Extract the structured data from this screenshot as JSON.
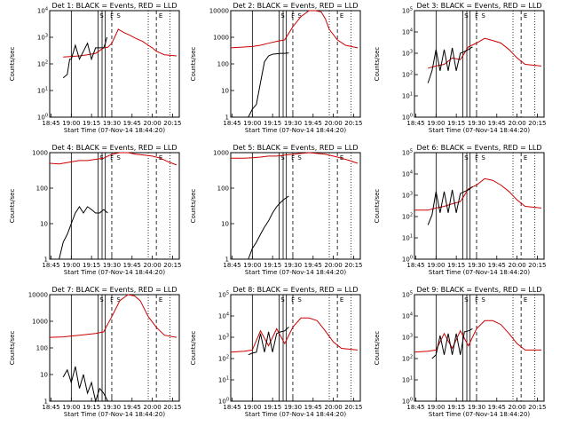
{
  "figure": {
    "colors": {
      "events": "#000000",
      "lld": "#cc0000",
      "axes": "#000000",
      "background": "#ffffff"
    },
    "panel_layout": "3x3 grid",
    "flag_letters": [
      "S",
      "F",
      "S",
      "E"
    ]
  },
  "chart_data": [
    {
      "type": "line",
      "title": "Det 1: BLACK = Events, RED = LLD",
      "xlabel": "Start Time (07-Nov-14 18:44:20)",
      "ylabel": "Counts/sec",
      "yscale": "log",
      "ylim": [
        1,
        10000
      ],
      "xlim": [
        18.7333,
        20.3333
      ],
      "xticks": [
        "18:45",
        "19:00",
        "19:15",
        "19:30",
        "19:45",
        "20:00",
        "20:15"
      ],
      "yticks": [
        "10^0",
        "10^1",
        "10^2",
        "10^3",
        "10^4"
      ],
      "series": [
        {
          "name": "Events",
          "x": [
            18.9,
            18.95,
            18.98,
            19.0,
            19.05,
            19.1,
            19.2,
            19.25,
            19.3,
            19.35,
            19.4,
            19.42,
            19.44
          ],
          "y": [
            30,
            40,
            150,
            150,
            500,
            150,
            600,
            150,
            400,
            400,
            400,
            600,
            1000
          ]
        },
        {
          "name": "LLD",
          "x": [
            18.9,
            19.0,
            19.1,
            19.2,
            19.3,
            19.4,
            19.45,
            19.5,
            19.58,
            19.65,
            19.72,
            19.8,
            19.88,
            19.95,
            20.0,
            20.05,
            20.15,
            20.3
          ],
          "y": [
            180,
            190,
            200,
            220,
            250,
            400,
            420,
            600,
            2000,
            1500,
            1200,
            900,
            700,
            500,
            400,
            300,
            220,
            200
          ]
        }
      ]
    },
    {
      "type": "line",
      "title": "Det 2: BLACK = Events, RED = LLD",
      "xlabel": "Start Time (07-Nov-14 18:44:20)",
      "ylabel": "Counts/sec",
      "yscale": "log",
      "ylim": [
        1,
        10000
      ],
      "xlim": [
        18.7333,
        20.3333
      ],
      "xticks": [
        "18:45",
        "19:00",
        "19:15",
        "19:30",
        "19:45",
        "20:00",
        "20:15"
      ],
      "yticks": [
        "1",
        "10",
        "100",
        "1000",
        "10000"
      ],
      "series": [
        {
          "name": "Events",
          "x": [
            18.95,
            19.0,
            19.05,
            19.1,
            19.15,
            19.2,
            19.25,
            19.3,
            19.35,
            19.4,
            19.45
          ],
          "y": [
            1,
            2,
            3,
            20,
            120,
            200,
            230,
            240,
            250,
            250,
            260
          ]
        },
        {
          "name": "LLD",
          "x": [
            18.7333,
            18.85,
            19.0,
            19.1,
            19.2,
            19.3,
            19.4,
            19.5,
            19.6,
            19.7,
            19.78,
            19.85,
            19.9,
            19.95,
            20.05,
            20.15,
            20.3
          ],
          "y": [
            400,
            420,
            450,
            500,
            600,
            700,
            800,
            2500,
            6000,
            10000,
            10000,
            9000,
            5000,
            2000,
            800,
            500,
            400
          ]
        }
      ]
    },
    {
      "type": "line",
      "title": "Det 3: BLACK = Events, RED = LLD",
      "xlabel": "Start Time (07-Nov-14 18:44:20)",
      "ylabel": "Counts/sec",
      "yscale": "log",
      "ylim": [
        1,
        100000
      ],
      "xlim": [
        18.7333,
        20.3333
      ],
      "xticks": [
        "18:45",
        "19:00",
        "19:15",
        "19:30",
        "19:45",
        "20:00",
        "20:15"
      ],
      "yticks": [
        "10^0",
        "10^1",
        "10^2",
        "10^3",
        "10^4",
        "10^5"
      ],
      "series": [
        {
          "name": "Events",
          "x": [
            18.9,
            18.95,
            19.0,
            19.05,
            19.1,
            19.15,
            19.2,
            19.25,
            19.3,
            19.35,
            19.4,
            19.45
          ],
          "y": [
            40,
            150,
            1500,
            150,
            1500,
            150,
            1800,
            150,
            1000,
            1200,
            1500,
            2000
          ]
        },
        {
          "name": "LLD",
          "x": [
            18.9,
            19.0,
            19.1,
            19.2,
            19.3,
            19.4,
            19.5,
            19.6,
            19.7,
            19.8,
            19.9,
            20.0,
            20.1,
            20.3
          ],
          "y": [
            200,
            250,
            300,
            600,
            500,
            2000,
            3000,
            5000,
            4000,
            3000,
            1500,
            600,
            300,
            250
          ]
        }
      ]
    },
    {
      "type": "line",
      "title": "Det 4: BLACK = Events, RED = LLD",
      "xlabel": "Start Time (07-Nov-14 18:44:20)",
      "ylabel": "Counts/sec",
      "yscale": "log",
      "ylim": [
        1,
        1000
      ],
      "xlim": [
        18.7333,
        20.3333
      ],
      "xticks": [
        "18:45",
        "19:00",
        "19:15",
        "19:30",
        "19:45",
        "20:00",
        "20:15"
      ],
      "yticks": [
        "1",
        "10",
        "100",
        "1000"
      ],
      "series": [
        {
          "name": "Events",
          "x": [
            18.85,
            18.9,
            18.95,
            19.0,
            19.05,
            19.1,
            19.15,
            19.2,
            19.25,
            19.3,
            19.35,
            19.4,
            19.45
          ],
          "y": [
            1,
            3,
            5,
            10,
            20,
            30,
            20,
            30,
            25,
            20,
            20,
            25,
            20
          ]
        },
        {
          "name": "LLD",
          "x": [
            18.7333,
            18.85,
            19.0,
            19.1,
            19.2,
            19.3,
            19.4,
            19.5,
            19.6,
            19.7,
            19.8,
            19.9,
            20.0,
            20.1,
            20.2,
            20.3
          ],
          "y": [
            500,
            480,
            550,
            600,
            600,
            650,
            700,
            900,
            1000,
            1000,
            900,
            850,
            800,
            700,
            550,
            450
          ]
        }
      ]
    },
    {
      "type": "line",
      "title": "Det 5: BLACK = Events, RED = LLD",
      "xlabel": "Start Time (07-Nov-14 18:44:20)",
      "ylabel": "Counts/sec",
      "yscale": "log",
      "ylim": [
        1,
        1000
      ],
      "xlim": [
        18.7333,
        20.3333
      ],
      "xticks": [
        "18:45",
        "19:00",
        "19:15",
        "19:30",
        "19:45",
        "20:00",
        "20:15"
      ],
      "yticks": [
        "1",
        "10",
        "100",
        "1000"
      ],
      "series": [
        {
          "name": "Events",
          "x": [
            18.95,
            19.0,
            19.05,
            19.1,
            19.15,
            19.2,
            19.25,
            19.3,
            19.35,
            19.4,
            19.45
          ],
          "y": [
            1,
            2,
            3,
            5,
            8,
            12,
            20,
            30,
            40,
            50,
            60
          ]
        },
        {
          "name": "LLD",
          "x": [
            18.7333,
            18.9,
            19.0,
            19.1,
            19.2,
            19.3,
            19.4,
            19.5,
            19.6,
            19.7,
            19.8,
            19.9,
            20.0,
            20.1,
            20.2,
            20.3
          ],
          "y": [
            700,
            700,
            720,
            750,
            800,
            800,
            850,
            900,
            950,
            1000,
            950,
            900,
            800,
            700,
            600,
            500
          ]
        }
      ]
    },
    {
      "type": "line",
      "title": "Det 6: BLACK = Events, RED = LLD",
      "xlabel": "Start Time (07-Nov-14 18:44:20)",
      "ylabel": "Counts/sec",
      "yscale": "log",
      "ylim": [
        1,
        100000
      ],
      "xlim": [
        18.7333,
        20.3333
      ],
      "xticks": [
        "18:45",
        "19:00",
        "19:15",
        "19:30",
        "19:45",
        "20:00",
        "20:15"
      ],
      "yticks": [
        "10^0",
        "10^1",
        "10^2",
        "10^3",
        "10^4",
        "10^5"
      ],
      "series": [
        {
          "name": "Events",
          "x": [
            18.9,
            18.95,
            19.0,
            19.05,
            19.1,
            19.15,
            19.2,
            19.25,
            19.3,
            19.35,
            19.4,
            19.45
          ],
          "y": [
            40,
            120,
            1500,
            150,
            1500,
            150,
            1800,
            150,
            1200,
            1500,
            1800,
            2500
          ]
        },
        {
          "name": "LLD",
          "x": [
            18.7333,
            18.9,
            19.0,
            19.1,
            19.2,
            19.3,
            19.4,
            19.5,
            19.6,
            19.7,
            19.8,
            19.9,
            20.0,
            20.1,
            20.3
          ],
          "y": [
            200,
            200,
            250,
            300,
            400,
            500,
            2000,
            3000,
            6000,
            5000,
            3000,
            1500,
            600,
            300,
            250
          ]
        }
      ]
    },
    {
      "type": "line",
      "title": "Det 7: BLACK = Events, RED = LLD",
      "xlabel": "Start Time (07-Nov-14 18:44:20)",
      "ylabel": "Counts/sec",
      "yscale": "log",
      "ylim": [
        1,
        10000
      ],
      "xlim": [
        18.7333,
        20.3333
      ],
      "xticks": [
        "18:45",
        "19:00",
        "19:15",
        "19:30",
        "19:45",
        "20:00",
        "20:15"
      ],
      "yticks": [
        "1",
        "10",
        "100",
        "1000",
        "10000"
      ],
      "series": [
        {
          "name": "Events",
          "x": [
            18.9,
            18.95,
            19.0,
            19.05,
            19.1,
            19.15,
            19.2,
            19.25,
            19.3,
            19.35,
            19.4,
            19.45
          ],
          "y": [
            8,
            15,
            5,
            20,
            3,
            10,
            2,
            5,
            1,
            3,
            2,
            1
          ]
        },
        {
          "name": "LLD",
          "x": [
            18.7333,
            18.9,
            19.0,
            19.1,
            19.2,
            19.3,
            19.4,
            19.5,
            19.6,
            19.7,
            19.78,
            19.85,
            19.9,
            19.95,
            20.05,
            20.15,
            20.3
          ],
          "y": [
            250,
            260,
            280,
            300,
            320,
            350,
            400,
            1500,
            6000,
            10000,
            9000,
            6000,
            3000,
            1500,
            600,
            300,
            250
          ]
        }
      ]
    },
    {
      "type": "line",
      "title": "Det 8: BLACK = Events, RED = LLD",
      "xlabel": "Start Time (07-Nov-14 18:44:20)",
      "ylabel": "Counts/sec",
      "yscale": "log",
      "ylim": [
        1,
        100000
      ],
      "xlim": [
        18.7333,
        20.3333
      ],
      "xticks": [
        "18:45",
        "19:00",
        "19:15",
        "19:30",
        "19:45",
        "20:00",
        "20:15"
      ],
      "yticks": [
        "10^0",
        "10^1",
        "10^2",
        "10^3",
        "10^4",
        "10^5"
      ],
      "series": [
        {
          "name": "Events",
          "x": [
            18.95,
            19.0,
            19.05,
            19.1,
            19.15,
            19.2,
            19.25,
            19.3,
            19.35,
            19.4,
            19.45
          ],
          "y": [
            150,
            180,
            200,
            1500,
            200,
            1800,
            200,
            1500,
            1800,
            2000,
            3000
          ]
        },
        {
          "name": "LLD",
          "x": [
            18.7333,
            18.9,
            19.0,
            19.1,
            19.2,
            19.3,
            19.4,
            19.5,
            19.6,
            19.7,
            19.8,
            19.9,
            20.0,
            20.1,
            20.3
          ],
          "y": [
            200,
            220,
            250,
            2000,
            400,
            2500,
            500,
            3000,
            8000,
            8000,
            6000,
            2000,
            600,
            300,
            250
          ]
        }
      ]
    },
    {
      "type": "line",
      "title": "Det 9: BLACK = Events, RED = LLD",
      "xlabel": "Start Time (07-Nov-14 18:44:20)",
      "ylabel": "Counts/sec",
      "yscale": "log",
      "ylim": [
        1,
        100000
      ],
      "xlim": [
        18.7333,
        20.3333
      ],
      "xticks": [
        "18:45",
        "19:00",
        "19:15",
        "19:30",
        "19:45",
        "20:00",
        "20:15"
      ],
      "yticks": [
        "10^0",
        "10^1",
        "10^2",
        "10^3",
        "10^4",
        "10^5"
      ],
      "series": [
        {
          "name": "Events",
          "x": [
            18.95,
            19.0,
            19.05,
            19.1,
            19.15,
            19.2,
            19.25,
            19.3,
            19.35,
            19.4,
            19.45
          ],
          "y": [
            100,
            150,
            1200,
            150,
            1500,
            150,
            1500,
            150,
            1800,
            2000,
            2500
          ]
        },
        {
          "name": "LLD",
          "x": [
            18.7333,
            18.9,
            19.0,
            19.1,
            19.2,
            19.3,
            19.4,
            19.5,
            19.6,
            19.7,
            19.8,
            19.9,
            20.0,
            20.1,
            20.3
          ],
          "y": [
            200,
            220,
            250,
            1500,
            300,
            2000,
            400,
            2500,
            6000,
            6000,
            4000,
            1500,
            500,
            250,
            250
          ]
        }
      ]
    }
  ]
}
